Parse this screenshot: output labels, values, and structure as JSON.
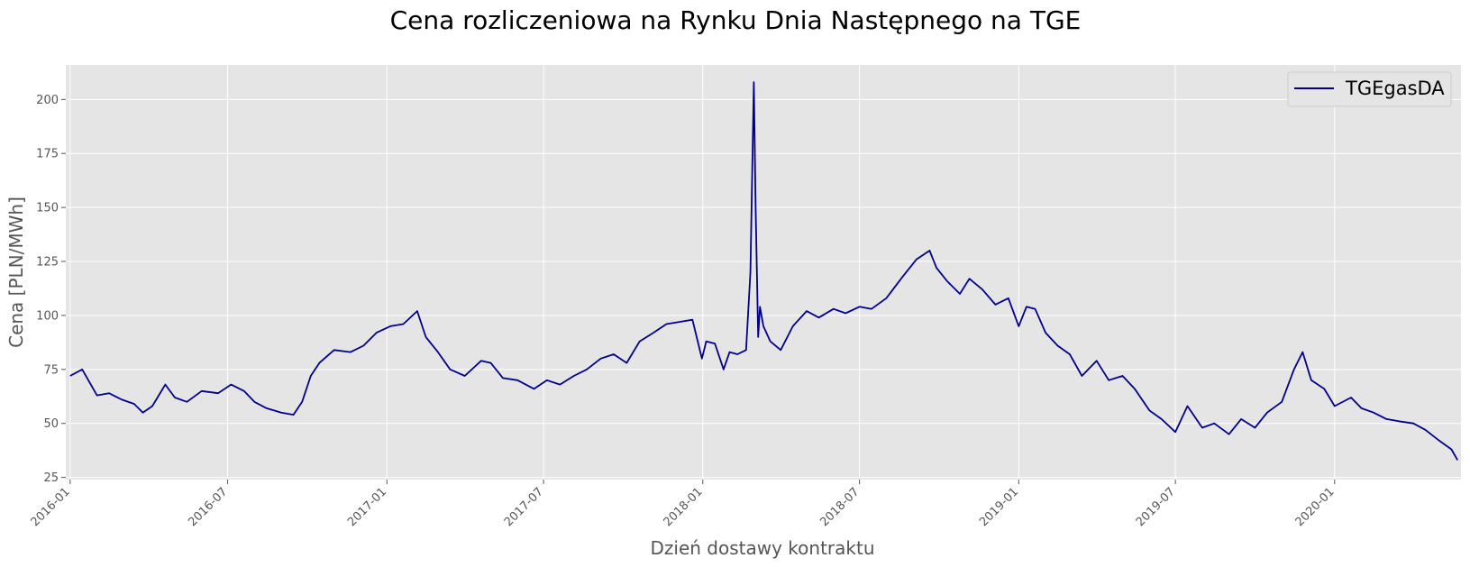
{
  "chart_data": {
    "type": "line",
    "title": "Cena rozliczeniowa na Rynku Dnia Następnego na TGE",
    "xlabel": "Dzień dostawy kontraktu",
    "ylabel": "Cena [PLN/MWh]",
    "xlim": [
      "2015-12-27",
      "2020-05-26"
    ],
    "ylim": [
      24,
      216
    ],
    "x_ticks": [
      "2016-01",
      "2016-07",
      "2017-01",
      "2017-07",
      "2018-01",
      "2018-07",
      "2019-01",
      "2019-07",
      "2020-01"
    ],
    "y_ticks": [
      25,
      50,
      75,
      100,
      125,
      150,
      175,
      200
    ],
    "grid": true,
    "legend": "top-right",
    "colors": {
      "series": "#00008b",
      "plot_bg": "#e5e5e5",
      "grid": "#ffffff"
    },
    "series": [
      {
        "name": "TGEgasDA",
        "x": [
          "2016-01-01",
          "2016-01-15",
          "2016-02-01",
          "2016-02-15",
          "2016-03-01",
          "2016-03-15",
          "2016-03-25",
          "2016-04-05",
          "2016-04-20",
          "2016-05-01",
          "2016-05-15",
          "2016-06-01",
          "2016-06-20",
          "2016-07-05",
          "2016-07-20",
          "2016-08-01",
          "2016-08-15",
          "2016-09-01",
          "2016-09-15",
          "2016-09-25",
          "2016-10-05",
          "2016-10-15",
          "2016-11-01",
          "2016-11-20",
          "2016-12-05",
          "2016-12-20",
          "2017-01-05",
          "2017-01-20",
          "2017-02-05",
          "2017-02-15",
          "2017-03-01",
          "2017-03-15",
          "2017-04-01",
          "2017-04-20",
          "2017-05-01",
          "2017-05-15",
          "2017-06-01",
          "2017-06-20",
          "2017-07-05",
          "2017-07-20",
          "2017-08-05",
          "2017-08-20",
          "2017-09-05",
          "2017-09-20",
          "2017-10-05",
          "2017-10-20",
          "2017-11-05",
          "2017-11-20",
          "2017-12-05",
          "2017-12-20",
          "2017-12-31",
          "2018-01-05",
          "2018-01-15",
          "2018-01-25",
          "2018-02-01",
          "2018-02-10",
          "2018-02-20",
          "2018-02-25",
          "2018-03-01",
          "2018-03-03",
          "2018-03-06",
          "2018-03-08",
          "2018-03-12",
          "2018-03-20",
          "2018-04-01",
          "2018-04-15",
          "2018-05-01",
          "2018-05-15",
          "2018-06-01",
          "2018-06-15",
          "2018-07-01",
          "2018-07-15",
          "2018-08-01",
          "2018-08-20",
          "2018-09-05",
          "2018-09-20",
          "2018-09-28",
          "2018-10-10",
          "2018-10-25",
          "2018-11-05",
          "2018-11-20",
          "2018-12-05",
          "2018-12-20",
          "2019-01-01",
          "2019-01-10",
          "2019-01-20",
          "2019-02-01",
          "2019-02-15",
          "2019-03-01",
          "2019-03-15",
          "2019-04-01",
          "2019-04-15",
          "2019-05-01",
          "2019-05-15",
          "2019-06-01",
          "2019-06-15",
          "2019-07-01",
          "2019-07-15",
          "2019-08-01",
          "2019-08-15",
          "2019-09-01",
          "2019-09-15",
          "2019-10-01",
          "2019-10-15",
          "2019-11-01",
          "2019-11-15",
          "2019-11-25",
          "2019-12-05",
          "2019-12-20",
          "2020-01-01",
          "2020-01-20",
          "2020-02-01",
          "2020-02-15",
          "2020-03-01",
          "2020-03-15",
          "2020-04-01",
          "2020-04-15",
          "2020-05-01",
          "2020-05-15",
          "2020-05-22"
        ],
        "values": [
          72,
          75,
          63,
          64,
          61,
          59,
          55,
          58,
          68,
          62,
          60,
          65,
          64,
          68,
          65,
          60,
          57,
          55,
          54,
          60,
          72,
          78,
          84,
          83,
          86,
          92,
          95,
          96,
          102,
          90,
          83,
          75,
          72,
          79,
          78,
          71,
          70,
          66,
          70,
          68,
          72,
          75,
          80,
          82,
          78,
          88,
          92,
          96,
          97,
          98,
          80,
          88,
          87,
          75,
          83,
          82,
          84,
          120,
          208,
          150,
          90,
          104,
          95,
          88,
          84,
          95,
          102,
          99,
          103,
          101,
          104,
          103,
          108,
          118,
          126,
          130,
          122,
          116,
          110,
          117,
          112,
          105,
          108,
          95,
          104,
          103,
          92,
          86,
          82,
          72,
          79,
          70,
          72,
          66,
          56,
          52,
          46,
          58,
          48,
          50,
          45,
          52,
          48,
          55,
          60,
          75,
          83,
          70,
          66,
          58,
          62,
          57,
          55,
          52,
          51,
          50,
          47,
          42,
          38,
          33
        ]
      }
    ]
  }
}
